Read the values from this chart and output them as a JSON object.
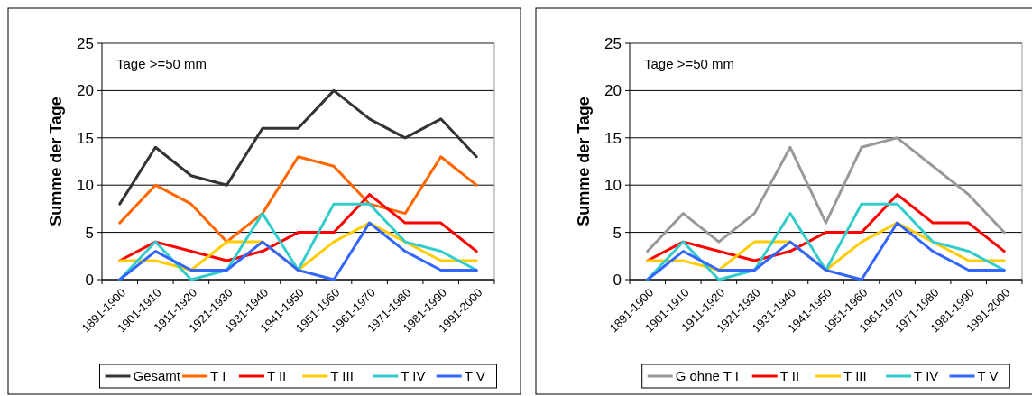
{
  "chart_data": [
    {
      "type": "line",
      "ylabel": "Summe der Tage",
      "annotations": [
        "Tage >=50 mm"
      ],
      "categories": [
        "1891-1900",
        "1901-1910",
        "1911-1920",
        "1921-1930",
        "1931-1940",
        "1941-1950",
        "1951-1960",
        "1961-1970",
        "1971-1980",
        "1981-1990",
        "1991-2000"
      ],
      "ylim": [
        0,
        25
      ],
      "yticks": [
        0,
        5,
        10,
        15,
        20,
        25
      ],
      "grid": "y",
      "legend": "bottom",
      "marker": "none",
      "line_style": "solid",
      "series": [
        {
          "name": "Gesamt",
          "color": "#333333",
          "values": [
            8,
            14,
            11,
            10,
            16,
            16,
            20,
            17,
            15,
            17,
            13
          ]
        },
        {
          "name": "T I",
          "color": "#ff6600",
          "values": [
            6,
            10,
            8,
            4,
            7,
            13,
            12,
            8,
            7,
            13,
            10
          ]
        },
        {
          "name": "T II",
          "color": "#ff0000",
          "values": [
            2,
            4,
            3,
            2,
            3,
            5,
            5,
            9,
            6,
            6,
            3
          ]
        },
        {
          "name": "T III",
          "color": "#ffcc00",
          "values": [
            2,
            2,
            1,
            4,
            4,
            1,
            4,
            6,
            4,
            2,
            2
          ]
        },
        {
          "name": "T IV",
          "color": "#33cccc",
          "values": [
            0,
            4,
            0,
            1,
            7,
            1,
            8,
            8,
            4,
            3,
            1
          ]
        },
        {
          "name": "T V",
          "color": "#3366ff",
          "values": [
            0,
            3,
            1,
            1,
            4,
            1,
            0,
            6,
            3,
            1,
            1
          ]
        }
      ]
    },
    {
      "type": "line",
      "ylabel": "Summe der Tage",
      "annotations": [
        "Tage >=50 mm"
      ],
      "categories": [
        "1891-1900",
        "1901-1910",
        "1911-1920",
        "1921-1930",
        "1931-1940",
        "1941-1950",
        "1951-1960",
        "1961-1970",
        "1971-1980",
        "1981-1990",
        "1991-2000"
      ],
      "ylim": [
        0,
        25
      ],
      "yticks": [
        0,
        5,
        10,
        15,
        20,
        25
      ],
      "grid": "y",
      "legend": "bottom",
      "marker": "none",
      "line_style": "solid",
      "series": [
        {
          "name": "G ohne T I",
          "color": "#999999",
          "values": [
            3,
            7,
            4,
            7,
            14,
            6,
            14,
            15,
            12,
            9,
            5
          ]
        },
        {
          "name": "T II",
          "color": "#ff0000",
          "values": [
            2,
            4,
            3,
            2,
            3,
            5,
            5,
            9,
            6,
            6,
            3
          ]
        },
        {
          "name": "T III",
          "color": "#ffcc00",
          "values": [
            2,
            2,
            1,
            4,
            4,
            1,
            4,
            6,
            4,
            2,
            2
          ]
        },
        {
          "name": "T IV",
          "color": "#33cccc",
          "values": [
            0,
            4,
            0,
            1,
            7,
            1,
            8,
            8,
            4,
            3,
            1
          ]
        },
        {
          "name": "T V",
          "color": "#3366ff",
          "values": [
            0,
            3,
            1,
            1,
            4,
            1,
            0,
            6,
            3,
            1,
            1
          ]
        }
      ]
    }
  ]
}
